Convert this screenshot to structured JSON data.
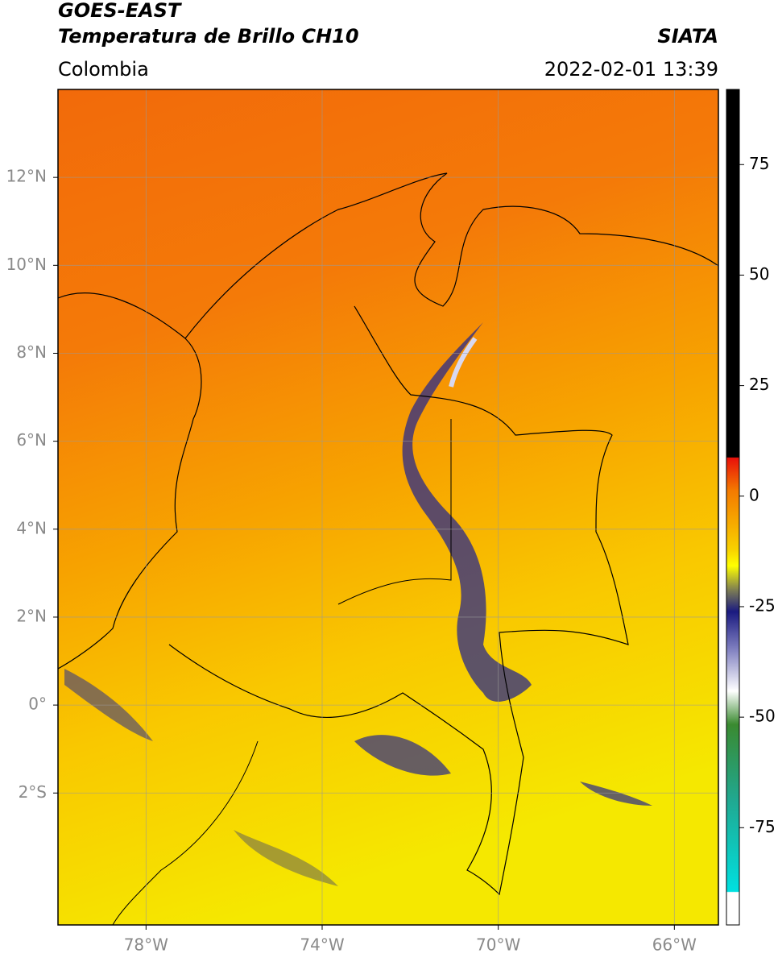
{
  "header": {
    "title": "GOES-EAST",
    "subtitle": "Temperatura de Brillo CH10",
    "region": "Colombia",
    "source": "SIATA",
    "datetime": "2022-02-01 13:39"
  },
  "map": {
    "xlim": [
      -80,
      -65
    ],
    "ylim": [
      -5,
      14
    ],
    "xticks": [
      {
        "value": -78,
        "label": "78°W"
      },
      {
        "value": -74,
        "label": "74°W"
      },
      {
        "value": -70,
        "label": "70°W"
      },
      {
        "value": -66,
        "label": "66°W"
      }
    ],
    "yticks": [
      {
        "value": 12,
        "label": "12°N"
      },
      {
        "value": 10,
        "label": "10°N"
      },
      {
        "value": 8,
        "label": "8°N"
      },
      {
        "value": 6,
        "label": "6°N"
      },
      {
        "value": 4,
        "label": "4°N"
      },
      {
        "value": 2,
        "label": "2°N"
      },
      {
        "value": 0,
        "label": "0°"
      },
      {
        "value": -2,
        "label": "2°S"
      }
    ],
    "grid": true
  },
  "colorbar": {
    "lim": [
      -97,
      92
    ],
    "ticks": [
      75,
      50,
      25,
      0,
      -25,
      -50,
      -75
    ]
  }
}
